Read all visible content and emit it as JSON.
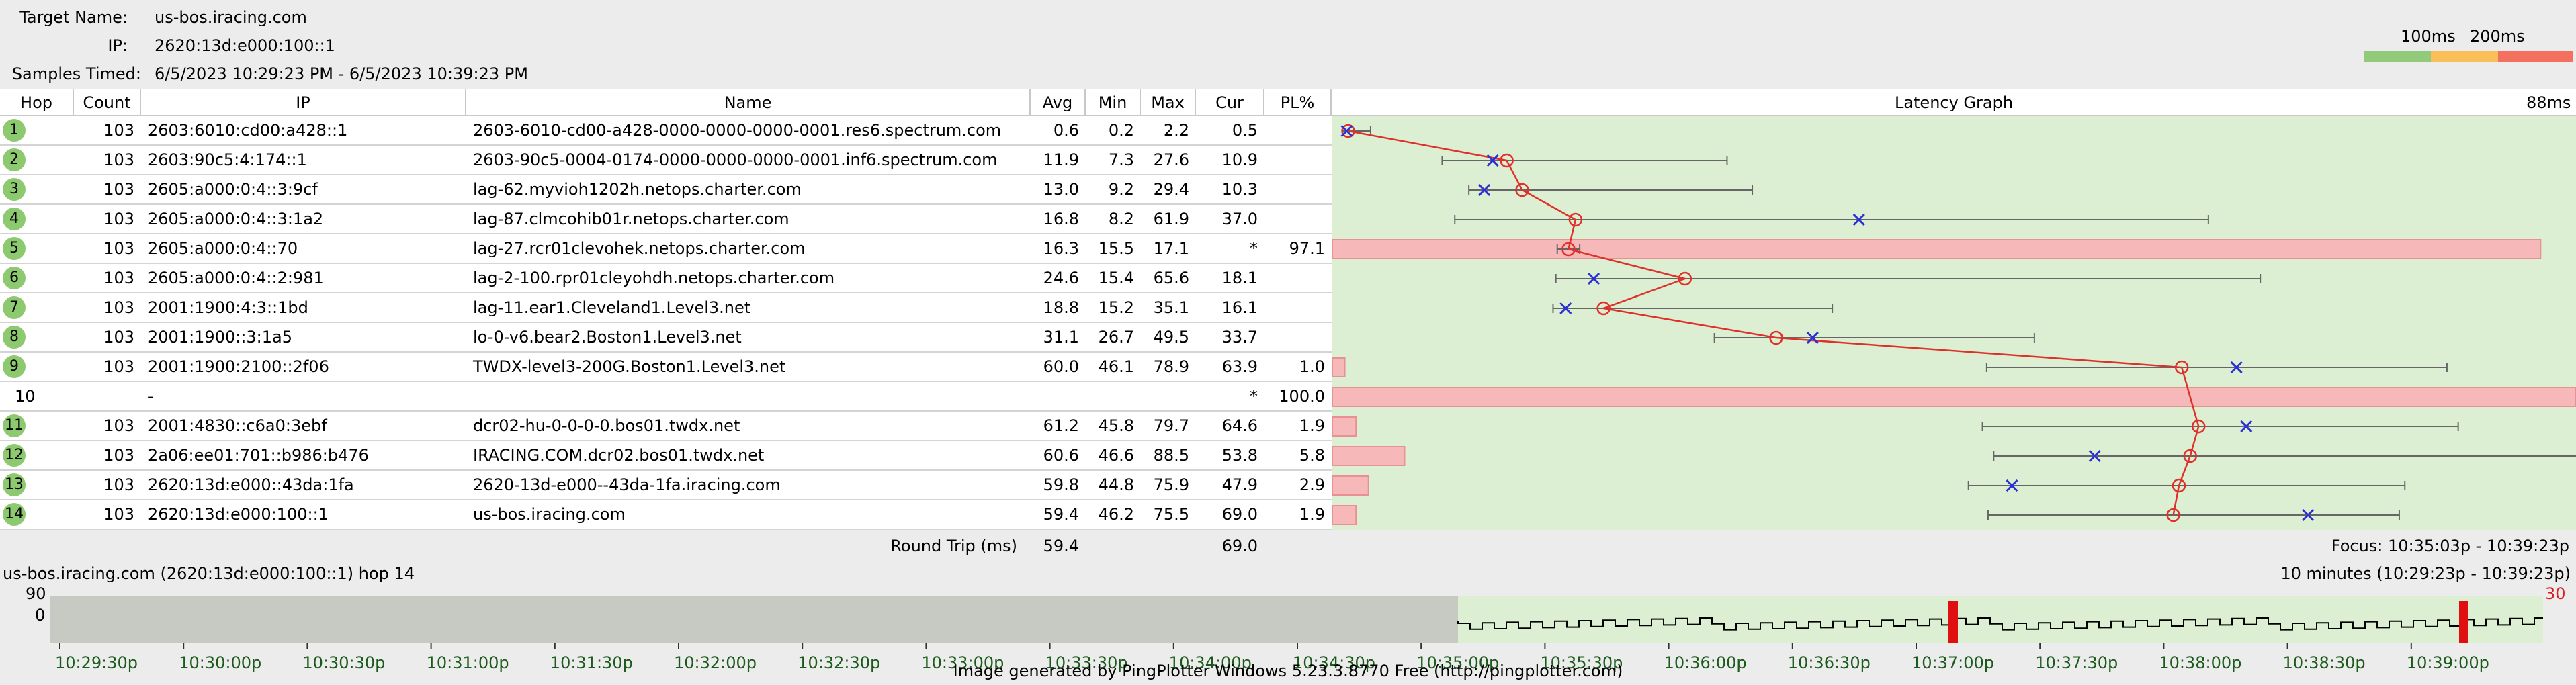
{
  "header": {
    "target_label": "Target Name:",
    "target_value": "us-bos.iracing.com",
    "ip_label": "IP:",
    "ip_value": "2620:13d:e000:100::1",
    "samples_label": "Samples Timed:",
    "samples_value": "6/5/2023 10:29:23 PM - 6/5/2023 10:39:23 PM"
  },
  "legend": {
    "l100": "100ms",
    "l200": "200ms",
    "colors": [
      "#92c97a",
      "#fbbf5a",
      "#f36f5e"
    ]
  },
  "columns": {
    "hop": "Hop",
    "count": "Count",
    "ip": "IP",
    "name": "Name",
    "avg": "Avg",
    "min": "Min",
    "max": "Max",
    "cur": "Cur",
    "pl": "PL%",
    "graph": "Latency Graph",
    "graph_max": "88ms"
  },
  "hops": [
    {
      "hop": "1",
      "count": "103",
      "ip": "2603:6010:cd00:a428::1",
      "name": "2603-6010-cd00-a428-0000-0000-0000-0001.res6.spectrum.com",
      "avg": "0.6",
      "min": "0.2",
      "max": "2.2",
      "cur": "0.5",
      "pl": "",
      "avgv": 0.6,
      "minv": 0.2,
      "maxv": 2.2,
      "curv": 0.5,
      "plv": 0
    },
    {
      "hop": "2",
      "count": "103",
      "ip": "2603:90c5:4:174::1",
      "name": "2603-90c5-0004-0174-0000-0000-0000-0001.inf6.spectrum.com",
      "avg": "11.9",
      "min": "7.3",
      "max": "27.6",
      "cur": "10.9",
      "pl": "",
      "avgv": 11.9,
      "minv": 7.3,
      "maxv": 27.6,
      "curv": 10.9,
      "plv": 0
    },
    {
      "hop": "3",
      "count": "103",
      "ip": "2605:a000:0:4::3:9cf",
      "name": "lag-62.myvioh1202h.netops.charter.com",
      "avg": "13.0",
      "min": "9.2",
      "max": "29.4",
      "cur": "10.3",
      "pl": "",
      "avgv": 13.0,
      "minv": 9.2,
      "maxv": 29.4,
      "curv": 10.3,
      "plv": 0
    },
    {
      "hop": "4",
      "count": "103",
      "ip": "2605:a000:0:4::3:1a2",
      "name": "lag-87.clmcohib01r.netops.charter.com",
      "avg": "16.8",
      "min": "8.2",
      "max": "61.9",
      "cur": "37.0",
      "pl": "",
      "avgv": 16.8,
      "minv": 8.2,
      "maxv": 61.9,
      "curv": 37.0,
      "plv": 0
    },
    {
      "hop": "5",
      "count": "103",
      "ip": "2605:a000:0:4::70",
      "name": "lag-27.rcr01clevohek.netops.charter.com",
      "avg": "16.3",
      "min": "15.5",
      "max": "17.1",
      "cur": "*",
      "pl": "97.1",
      "avgv": 16.3,
      "minv": 15.5,
      "maxv": 17.1,
      "curv": null,
      "plv": 97.1
    },
    {
      "hop": "6",
      "count": "103",
      "ip": "2605:a000:0:4::2:981",
      "name": "lag-2-100.rpr01cleyohdh.netops.charter.com",
      "avg": "24.6",
      "min": "15.4",
      "max": "65.6",
      "cur": "18.1",
      "pl": "",
      "avgv": 24.6,
      "minv": 15.4,
      "maxv": 65.6,
      "curv": 18.1,
      "plv": 0
    },
    {
      "hop": "7",
      "count": "103",
      "ip": "2001:1900:4:3::1bd",
      "name": "lag-11.ear1.Cleveland1.Level3.net",
      "avg": "18.8",
      "min": "15.2",
      "max": "35.1",
      "cur": "16.1",
      "pl": "",
      "avgv": 18.8,
      "minv": 15.2,
      "maxv": 35.1,
      "curv": 16.1,
      "plv": 0
    },
    {
      "hop": "8",
      "count": "103",
      "ip": "2001:1900::3:1a5",
      "name": "lo-0-v6.bear2.Boston1.Level3.net",
      "avg": "31.1",
      "min": "26.7",
      "max": "49.5",
      "cur": "33.7",
      "pl": "",
      "avgv": 31.1,
      "minv": 26.7,
      "maxv": 49.5,
      "curv": 33.7,
      "plv": 0
    },
    {
      "hop": "9",
      "count": "103",
      "ip": "2001:1900:2100::2f06",
      "name": "TWDX-level3-200G.Boston1.Level3.net",
      "avg": "60.0",
      "min": "46.1",
      "max": "78.9",
      "cur": "63.9",
      "pl": "1.0",
      "avgv": 60.0,
      "minv": 46.1,
      "maxv": 78.9,
      "curv": 63.9,
      "plv": 1.0
    },
    {
      "hop": "10",
      "count": "",
      "ip": "-",
      "name": "",
      "avg": "",
      "min": "",
      "max": "",
      "cur": "*",
      "pl": "100.0",
      "avgv": null,
      "minv": null,
      "maxv": null,
      "curv": null,
      "plv": 100
    },
    {
      "hop": "11",
      "count": "103",
      "ip": "2001:4830::c6a0:3ebf",
      "name": "dcr02-hu-0-0-0-0.bos01.twdx.net",
      "avg": "61.2",
      "min": "45.8",
      "max": "79.7",
      "cur": "64.6",
      "pl": "1.9",
      "avgv": 61.2,
      "minv": 45.8,
      "maxv": 79.7,
      "curv": 64.6,
      "plv": 1.9
    },
    {
      "hop": "12",
      "count": "103",
      "ip": "2a06:ee01:701::b986:b476",
      "name": "IRACING.COM.dcr02.bos01.twdx.net",
      "avg": "60.6",
      "min": "46.6",
      "max": "88.5",
      "cur": "53.8",
      "pl": "5.8",
      "avgv": 60.6,
      "minv": 46.6,
      "maxv": 88.5,
      "curv": 53.8,
      "plv": 5.8
    },
    {
      "hop": "13",
      "count": "103",
      "ip": "2620:13d:e000::43da:1fa",
      "name": "2620-13d-e000--43da-1fa.iracing.com",
      "avg": "59.8",
      "min": "44.8",
      "max": "75.9",
      "cur": "47.9",
      "pl": "2.9",
      "avgv": 59.8,
      "minv": 44.8,
      "maxv": 75.9,
      "curv": 47.9,
      "plv": 2.9
    },
    {
      "hop": "14",
      "count": "103",
      "ip": "2620:13d:e000:100::1",
      "name": "us-bos.iracing.com",
      "avg": "59.4",
      "min": "46.2",
      "max": "75.5",
      "cur": "69.0",
      "pl": "1.9",
      "avgv": 59.4,
      "minv": 46.2,
      "maxv": 75.5,
      "curv": 69.0,
      "plv": 1.9
    }
  ],
  "footer": {
    "rt_label": "Round Trip (ms)",
    "rt_avg": "59.4",
    "rt_cur": "69.0",
    "focus": "Focus: 10:35:03p - 10:39:23p"
  },
  "timeline": {
    "title": "us-bos.iracing.com (2620:13d:e000:100::1) hop 14",
    "range": "10 minutes (10:29:23p - 10:39:23p)",
    "y_max": "90",
    "y_min": "0",
    "right_max": "30",
    "ticks": [
      "10:29:30p",
      "10:30:00p",
      "10:30:30p",
      "10:31:00p",
      "10:31:30p",
      "10:32:00p",
      "10:32:30p",
      "10:33:00p",
      "10:33:30p",
      "10:34:00p",
      "10:34:30p",
      "10:35:00p",
      "10:35:30p",
      "10:36:00p",
      "10:36:30p",
      "10:37:00p",
      "10:37:30p",
      "10:38:00p",
      "10:38:30p",
      "10:39:00p"
    ]
  },
  "credit": "Image generated by PingPlotter Windows 5.23.3.8770 Free (http://pingplotter.com)"
}
